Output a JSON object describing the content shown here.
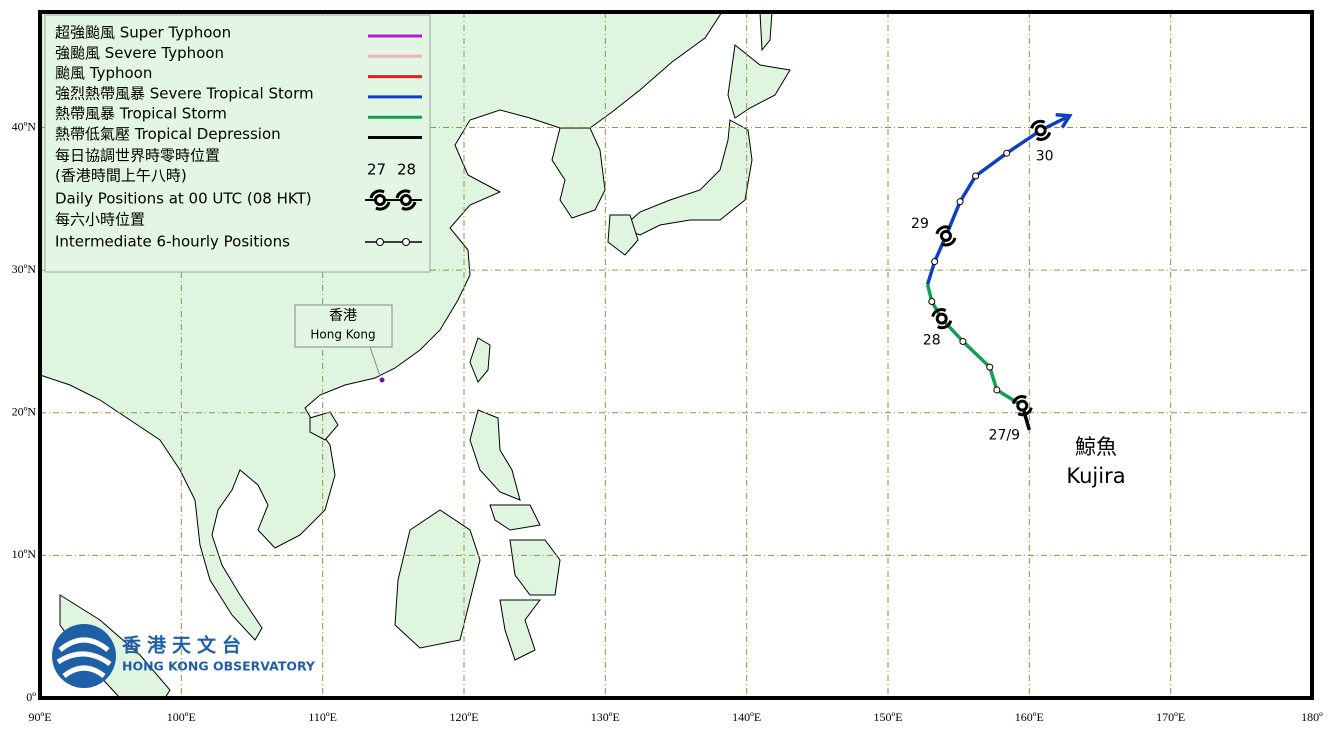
{
  "map": {
    "xaxis": {
      "lim": [
        90,
        180
      ],
      "ticks": [
        {
          "value": 90,
          "label": "90ºE"
        },
        {
          "value": 100,
          "label": "100ºE"
        },
        {
          "value": 110,
          "label": "110ºE"
        },
        {
          "value": 120,
          "label": "120ºE"
        },
        {
          "value": 130,
          "label": "130ºE"
        },
        {
          "value": 140,
          "label": "140ºE"
        },
        {
          "value": 150,
          "label": "150ºE"
        },
        {
          "value": 160,
          "label": "160ºE"
        },
        {
          "value": 170,
          "label": "170ºE"
        },
        {
          "value": 180,
          "label": "180º"
        }
      ]
    },
    "yaxis": {
      "lim": [
        0,
        48.1
      ],
      "ticks": [
        {
          "value": 0,
          "label": "0º"
        },
        {
          "value": 10,
          "label": "10ºN"
        },
        {
          "value": 20,
          "label": "20ºN"
        },
        {
          "value": 30,
          "label": "30ºN"
        },
        {
          "value": 40,
          "label": "40ºN"
        }
      ]
    },
    "legend": {
      "entries": [
        {
          "label": "超強颱風 Super Typhoon",
          "color": "#b020d0"
        },
        {
          "label": "強颱風 Severe Typhoon",
          "color": "#f4b0b0"
        },
        {
          "label": "颱風  Typhoon",
          "color": "#e02020"
        },
        {
          "label": "強烈熱帶風暴 Severe Tropical Storm",
          "color": "#1040c0"
        },
        {
          "label": "熱帶風暴 Tropical Storm",
          "color": "#10a050"
        },
        {
          "label": "熱帶低氣壓  Tropical Depression",
          "color": "#000000"
        }
      ],
      "daily_zh": "每日協調世界時零時位置",
      "daily_zh2": "(香港時間上午八時)",
      "daily_en": "Daily Positions at 00 UTC (08 HKT)",
      "daily_samples": [
        "27",
        "28"
      ],
      "sixhourly_zh": "每六小時位置",
      "sixhourly_en": "Intermediate 6-hourly Positions"
    },
    "hong_kong": {
      "label_zh": "香港",
      "label_en": "Hong Kong",
      "lon": 114.2,
      "lat": 22.3
    },
    "storm_name": {
      "zh": "鯨魚",
      "en": "Kujira"
    },
    "track": {
      "segments": [
        {
          "color": "#000000",
          "lon": [
            160.0,
            159.5
          ],
          "lat": [
            18.8,
            20.5
          ]
        },
        {
          "color": "#10a050",
          "lon": [
            159.5,
            157.7,
            157.2,
            155.3,
            153.8,
            153.1,
            152.8
          ],
          "lat": [
            20.5,
            21.6,
            23.2,
            25.0,
            26.6,
            27.8,
            29.0
          ]
        },
        {
          "color": "#1040c0",
          "lon": [
            152.8,
            153.3,
            154.1,
            155.1,
            156.2,
            158.4,
            160.8,
            162.6
          ],
          "lat": [
            29.0,
            30.6,
            32.4,
            34.8,
            36.6,
            38.2,
            39.8,
            40.7
          ]
        }
      ],
      "daily": [
        {
          "label": "27/9",
          "lon": 159.5,
          "lat": 20.5
        },
        {
          "label": "28",
          "lon": 153.8,
          "lat": 26.6
        },
        {
          "label": "29",
          "lon": 154.1,
          "lat": 32.4
        },
        {
          "label": "30",
          "lon": 160.8,
          "lat": 39.8
        }
      ]
    },
    "logo": {
      "zh": "香港天文台",
      "en": "HONG KONG OBSERVATORY"
    }
  }
}
